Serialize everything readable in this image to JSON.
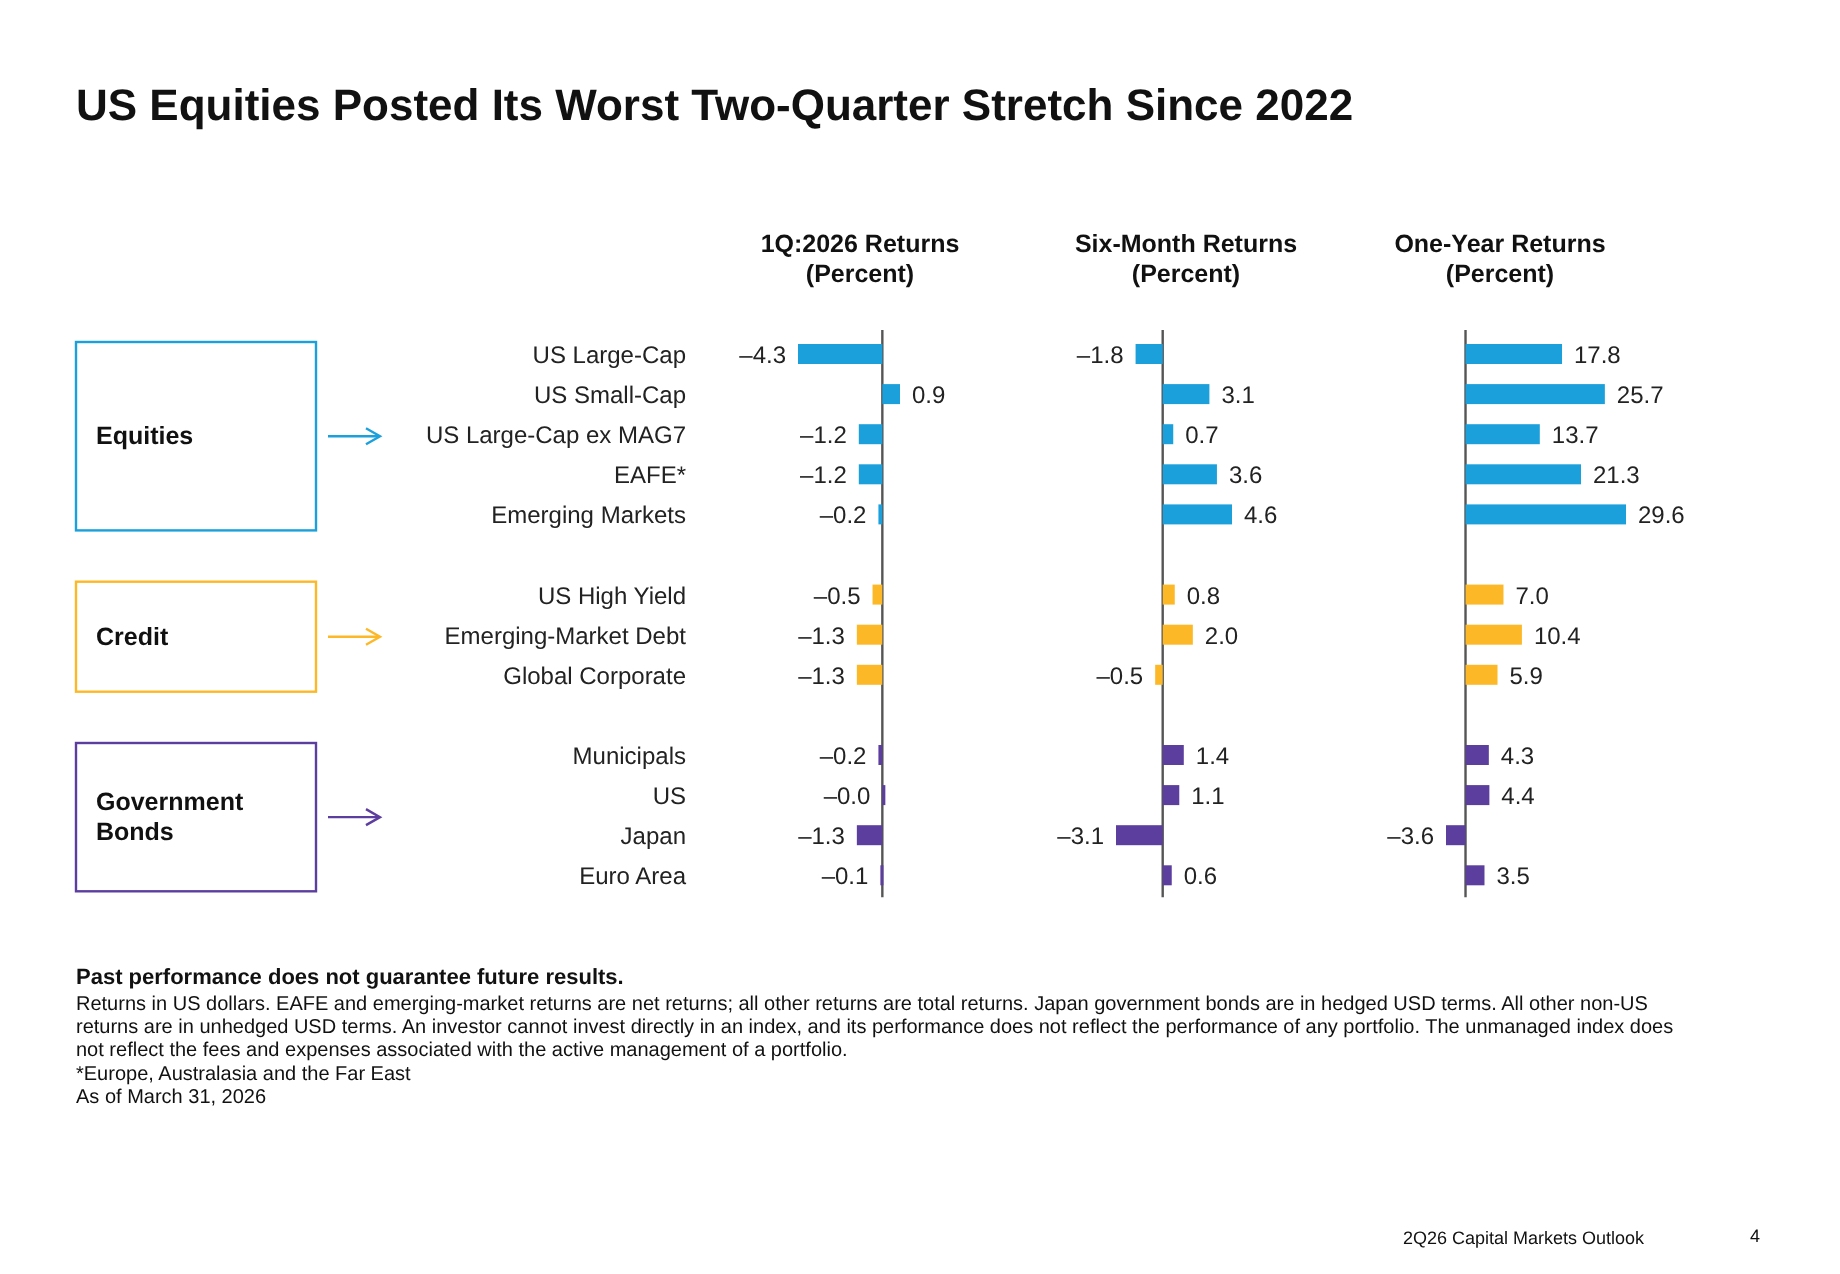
{
  "chart_data": [
    {
      "type": "bar",
      "orientation": "horizontal",
      "title": "US Equities Posted Its Worst Two-Quarter Stretch Since 2022",
      "subtitle": "1Q:2026 Returns (Percent)",
      "categories": [
        "US Large-Cap",
        "US Small-Cap",
        "US Large-Cap ex MAG7",
        "EAFE*",
        "Emerging Markets",
        null,
        "US High Yield",
        "Emerging-Market Debt",
        "Global Corporate",
        null,
        "Municipals",
        "US",
        "Japan",
        "Euro Area"
      ],
      "values": [
        -4.3,
        0.9,
        -1.2,
        -1.2,
        -0.2,
        null,
        -0.5,
        -1.3,
        -1.3,
        null,
        -0.2,
        0,
        -1.3,
        -0.1
      ],
      "value_labels": [
        "–4.3",
        "0.9",
        "–1.2",
        "–1.2",
        "–0.2",
        null,
        "–0.5",
        "–1.3",
        "–1.3",
        null,
        "–0.2",
        "–0.0",
        "–1.3",
        "–0.1"
      ],
      "colors": [
        "#1ba0dc",
        "#1ba0dc",
        "#1ba0dc",
        "#1ba0dc",
        "#1ba0dc",
        null,
        "#fdb827",
        "#fdb827",
        "#fdb827",
        null,
        "#5c3e9e",
        "#5c3e9e",
        "#5c3e9e",
        "#5c3e9e"
      ],
      "xlim": [
        -4.3,
        0.9
      ],
      "tick_labels": "y",
      "annotations": [
        "Equities",
        "Credit",
        "Government Bonds"
      ]
    },
    {
      "type": "bar",
      "orientation": "horizontal",
      "subtitle": "Six-Month Returns (Percent)",
      "values": [
        -1.8,
        3.1,
        0.7,
        3.6,
        4.6,
        null,
        0.8,
        2.0,
        -0.5,
        null,
        1.4,
        1.1,
        -3.1,
        0.6
      ],
      "value_labels": [
        "–1.8",
        "3.1",
        "0.7",
        "3.6",
        "4.6",
        null,
        "0.8",
        "2.0",
        "–0.5",
        null,
        "1.4",
        "1.1",
        "–3.1",
        "0.6"
      ],
      "colors": [
        "#1ba0dc",
        "#1ba0dc",
        "#1ba0dc",
        "#1ba0dc",
        "#1ba0dc",
        null,
        "#fdb827",
        "#fdb827",
        "#fdb827",
        null,
        "#5c3e9e",
        "#5c3e9e",
        "#5c3e9e",
        "#5c3e9e"
      ],
      "xlim": [
        -3.1,
        4.6
      ],
      "tick_labels": false
    },
    {
      "type": "bar",
      "orientation": "horizontal",
      "subtitle": "One-Year Returns (Percent)",
      "values": [
        17.8,
        25.7,
        13.7,
        21.3,
        29.6,
        null,
        7.0,
        10.4,
        5.9,
        null,
        4.3,
        4.4,
        -3.6,
        3.5
      ],
      "value_labels": [
        "17.8",
        "25.7",
        "13.7",
        "21.3",
        "29.6",
        null,
        "7.0",
        "10.4",
        "5.9",
        null,
        "4.3",
        "4.4",
        "–3.6",
        "3.5"
      ],
      "colors": [
        "#1ba0dc",
        "#1ba0dc",
        "#1ba0dc",
        "#1ba0dc",
        "#1ba0dc",
        null,
        "#fdb827",
        "#fdb827",
        "#fdb827",
        null,
        "#5c3e9e",
        "#5c3e9e",
        "#5c3e9e",
        "#5c3e9e"
      ],
      "xlim": [
        -3.6,
        29.6
      ],
      "tick_labels": false,
      "annotations": [
        "Past performance does not guarantee future results.",
        "Returns in US dollars. EAFE and emerging-market returns are net returns; all other returns are total returns. Japan government bonds are in hedged USD terms. All other non-US returns are in unhedged USD terms. An investor cannot invest directly in an index, and its performance does not reflect the performance of any portfolio. The unmanaged index does not reflect the fees and expenses associated with the active management of a portfolio.",
        "*Europe, Australasia and the Far East",
        "As of March 31, 2026",
        "2Q26 Capital Markets Outlook",
        "4"
      ]
    }
  ]
}
